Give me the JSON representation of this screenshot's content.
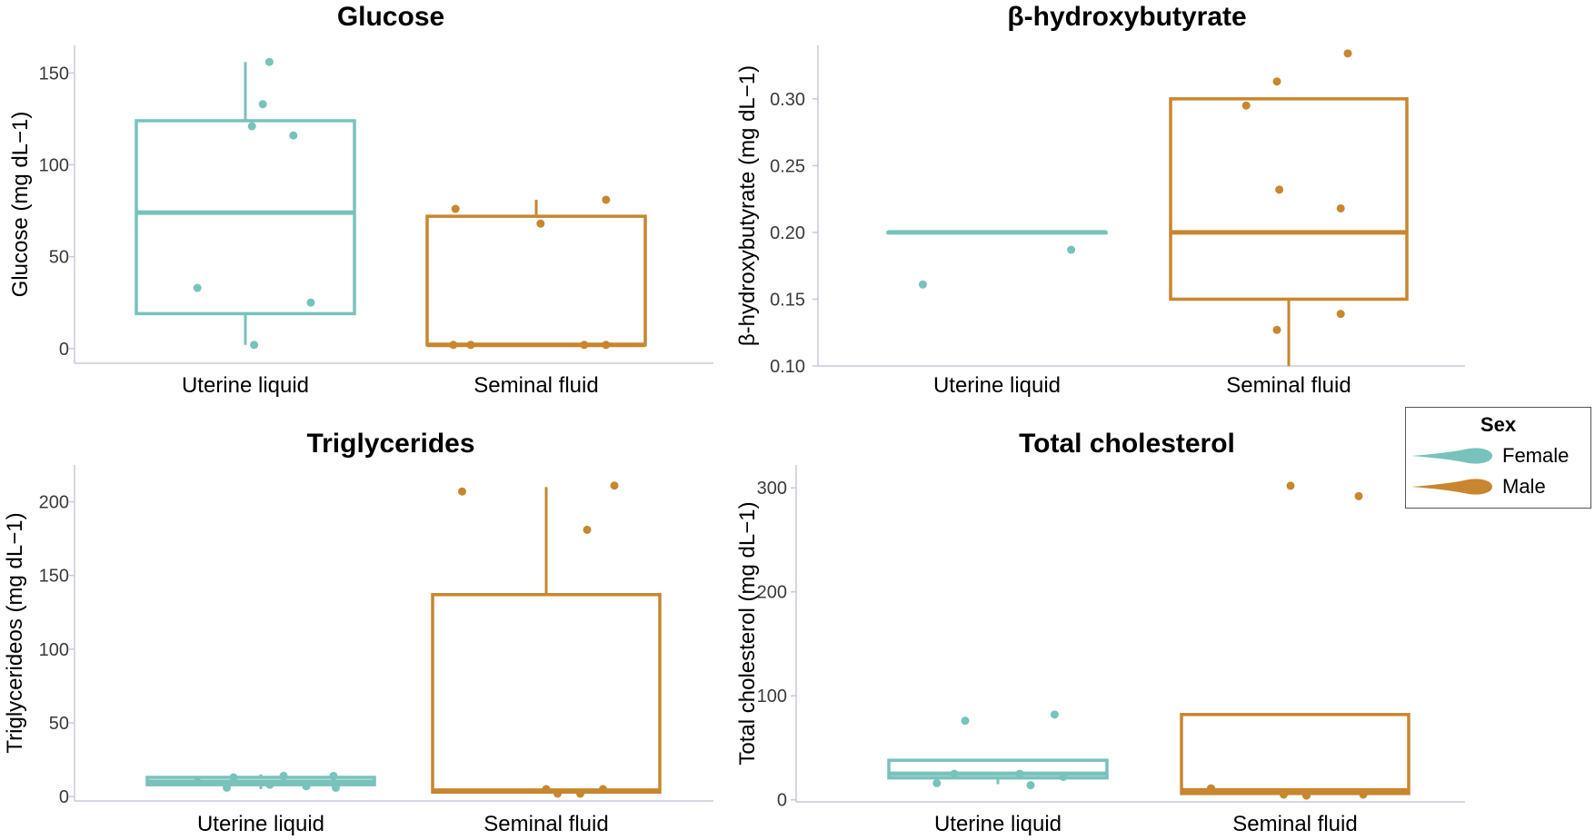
{
  "legend": {
    "title": "Sex",
    "items": [
      {
        "label": "Female",
        "color": "#78c2bc"
      },
      {
        "label": "Male",
        "color": "#c8862e"
      }
    ]
  },
  "chart_data": [
    {
      "type": "box",
      "title": "Glucose",
      "ylabel": "Glucose (mg dL−1)",
      "xlabel": "",
      "ylim": [
        -8,
        165
      ],
      "yticks": [
        0,
        50,
        100,
        150
      ],
      "ytick_labels": [
        "0",
        "50",
        "100",
        "150"
      ],
      "categories": [
        "Uterine liquid",
        "Seminal fluid"
      ],
      "series": [
        {
          "name": "Female",
          "category": "Uterine liquid",
          "color": "#78c2bc",
          "q1": 19,
          "median": 74,
          "q3": 124,
          "whisker_low": 2,
          "whisker_high": 156,
          "points": [
            [
              -0.22,
              33
            ],
            [
              0.03,
              121
            ],
            [
              0.08,
              133
            ],
            [
              0.11,
              156
            ],
            [
              0.22,
              116
            ],
            [
              0.3,
              25
            ],
            [
              0.04,
              2
            ]
          ]
        },
        {
          "name": "Male",
          "category": "Seminal fluid",
          "color": "#c8862e",
          "q1": 2,
          "median": 2,
          "q3": 72,
          "whisker_low": 2,
          "whisker_high": 81,
          "points": [
            [
              -0.37,
              76
            ],
            [
              -0.3,
              2
            ],
            [
              -0.38,
              2
            ],
            [
              0.02,
              68
            ],
            [
              0.22,
              2
            ],
            [
              0.32,
              81
            ],
            [
              0.32,
              2
            ]
          ]
        }
      ]
    },
    {
      "type": "box",
      "title": "β-hydroxybutyrate",
      "ylabel": "β-hydroxybutyrate (mg dL−1)",
      "xlabel": "",
      "ylim": [
        0.1,
        0.34
      ],
      "yticks": [
        0.1,
        0.15,
        0.2,
        0.25,
        0.3
      ],
      "ytick_labels": [
        "0.10",
        "0.15",
        "0.20",
        "0.25",
        "0.30"
      ],
      "categories": [
        "Uterine liquid",
        "Seminal fluid"
      ],
      "series": [
        {
          "name": "Female",
          "category": "Uterine liquid",
          "color": "#78c2bc",
          "q1": 0.2,
          "median": 0.2,
          "q3": 0.2,
          "whisker_low": 0.2,
          "whisker_high": 0.2,
          "points": [
            [
              -0.34,
              0.161
            ],
            [
              0.34,
              0.187
            ]
          ]
        },
        {
          "name": "Male",
          "category": "Seminal fluid",
          "color": "#c8862e",
          "q1": 0.15,
          "median": 0.2,
          "q3": 0.3,
          "whisker_low": 0.1,
          "whisker_high": 0.3,
          "points": [
            [
              -0.18,
              0.295
            ],
            [
              -0.05,
              0.313
            ],
            [
              -0.04,
              0.232
            ],
            [
              -0.05,
              0.127
            ],
            [
              0.22,
              0.218
            ],
            [
              0.25,
              0.334
            ],
            [
              0.22,
              0.139
            ]
          ]
        }
      ]
    },
    {
      "type": "box",
      "title": "Triglycerides",
      "ylabel": "Triglycerideos (mg dL−1)",
      "xlabel": "",
      "ylim": [
        -3,
        225
      ],
      "yticks": [
        0,
        50,
        100,
        150,
        200
      ],
      "ytick_labels": [
        "0",
        "50",
        "100",
        "150",
        "200"
      ],
      "categories": [
        "Uterine liquid",
        "Seminal fluid"
      ],
      "series": [
        {
          "name": "Female",
          "category": "Uterine liquid",
          "color": "#78c2bc",
          "q1": 8,
          "median": 10,
          "q3": 13,
          "whisker_low": 5,
          "whisker_high": 15,
          "points": [
            [
              -0.28,
              10
            ],
            [
              -0.15,
              6
            ],
            [
              -0.12,
              13
            ],
            [
              0.04,
              8
            ],
            [
              0.1,
              14
            ],
            [
              0.2,
              7
            ],
            [
              0.32,
              14
            ],
            [
              0.33,
              6
            ]
          ]
        },
        {
          "name": "Male",
          "category": "Seminal fluid",
          "color": "#c8862e",
          "q1": 3,
          "median": 4,
          "q3": 137,
          "whisker_low": 2,
          "whisker_high": 210,
          "points": [
            [
              -0.37,
              207
            ],
            [
              0.0,
              5
            ],
            [
              0.05,
              2
            ],
            [
              0.15,
              2
            ],
            [
              0.18,
              181
            ],
            [
              0.25,
              5
            ],
            [
              0.3,
              211
            ]
          ]
        }
      ]
    },
    {
      "type": "box",
      "title": "Total cholesterol",
      "ylabel": "Total cholesterol (mg dL−1)",
      "xlabel": "",
      "ylim": [
        -2,
        322
      ],
      "yticks": [
        0,
        100,
        200,
        300
      ],
      "ytick_labels": [
        "0",
        "100",
        "200",
        "300"
      ],
      "categories": [
        "Uterine liquid",
        "Seminal fluid"
      ],
      "series": [
        {
          "name": "Female",
          "category": "Uterine liquid",
          "color": "#78c2bc",
          "q1": 21,
          "median": 25,
          "q3": 38,
          "whisker_low": 15,
          "whisker_high": 38,
          "points": [
            [
              -0.28,
              16
            ],
            [
              -0.2,
              25
            ],
            [
              -0.15,
              76
            ],
            [
              0.1,
              25
            ],
            [
              0.15,
              14
            ],
            [
              0.26,
              82
            ],
            [
              0.3,
              22
            ]
          ]
        },
        {
          "name": "Male",
          "category": "Seminal fluid",
          "color": "#c8862e",
          "q1": 6,
          "median": 9,
          "q3": 82,
          "whisker_low": 5,
          "whisker_high": 82,
          "points": [
            [
              -0.37,
              11
            ],
            [
              -0.02,
              302
            ],
            [
              -0.05,
              5
            ],
            [
              0.05,
              4
            ],
            [
              0.28,
              292
            ],
            [
              0.3,
              5
            ]
          ]
        }
      ]
    }
  ]
}
